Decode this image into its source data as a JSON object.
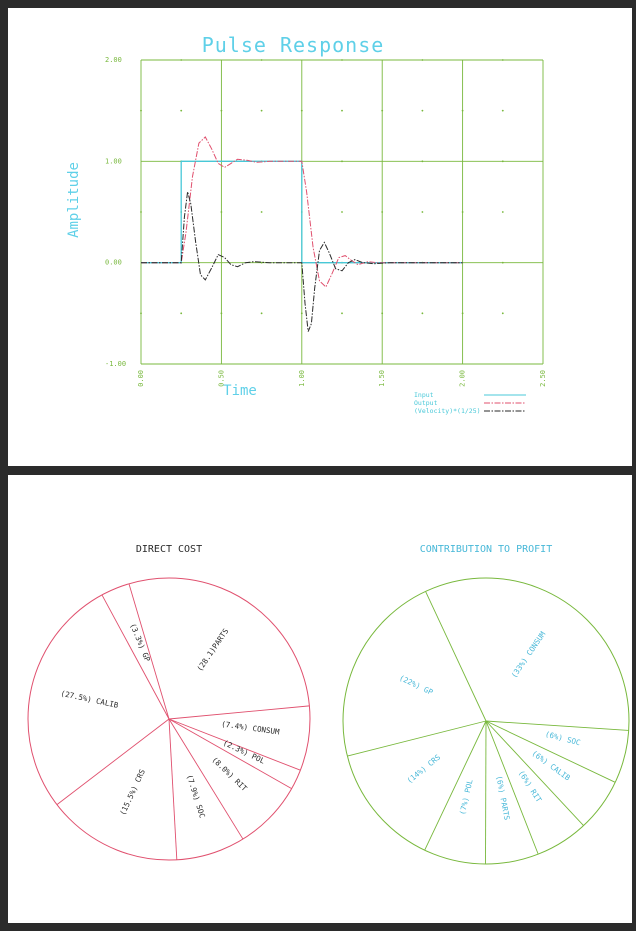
{
  "colors": {
    "grid": "#78b83c",
    "title": "#5fd0e8",
    "input": "#48c8d8",
    "output": "#e0506e",
    "velocity": "#2a2a2a",
    "pie_left": "#e0506e",
    "pie_right": "#78b83c",
    "pie_right_labels": "#48b8d8",
    "paper": "#ffffff",
    "border": "#2b2b2b"
  },
  "chart_data": [
    {
      "type": "line",
      "title": "Pulse Response",
      "xlabel": "Time",
      "ylabel": "Amplitude",
      "xlim": [
        0,
        2.5
      ],
      "ylim": [
        -1,
        2
      ],
      "x_ticks": [
        0,
        0.5,
        1,
        1.5,
        2,
        2.5
      ],
      "x_tick_labels": [
        "0.00",
        "0.50",
        "1.00",
        "1.50",
        "2.00",
        "2.50"
      ],
      "y_ticks": [
        2,
        1,
        0,
        -1
      ],
      "y_tick_labels": [
        "2.00",
        "1.00",
        "0.00",
        "-1.00"
      ],
      "grid": true,
      "legend": "bottom-right",
      "series": [
        {
          "name": "Input",
          "style": "solid",
          "x": [
            0,
            0.25,
            0.25,
            1.0,
            1.0,
            2.0
          ],
          "y": [
            0,
            0,
            1,
            1,
            0,
            0
          ]
        },
        {
          "name": "Output",
          "style": "dashdot",
          "x": [
            0,
            0.25,
            0.28,
            0.32,
            0.36,
            0.4,
            0.44,
            0.48,
            0.52,
            0.56,
            0.6,
            0.66,
            0.72,
            0.8,
            0.9,
            1.0,
            1.03,
            1.07,
            1.11,
            1.15,
            1.19,
            1.23,
            1.27,
            1.31,
            1.35,
            1.41,
            1.47,
            1.55,
            1.65,
            2.0
          ],
          "y": [
            0,
            0,
            0.3,
            0.85,
            1.18,
            1.24,
            1.12,
            0.98,
            0.94,
            0.98,
            1.02,
            1.01,
            0.99,
            1.0,
            1.0,
            1.0,
            0.7,
            0.15,
            -0.18,
            -0.24,
            -0.1,
            0.05,
            0.07,
            0.02,
            -0.02,
            0.01,
            0.0,
            0.0,
            0.0,
            0.0
          ]
        },
        {
          "name": "(Velocity)*(1/25)",
          "style": "dashdot",
          "x": [
            0,
            0.25,
            0.27,
            0.29,
            0.31,
            0.34,
            0.37,
            0.4,
            0.44,
            0.48,
            0.52,
            0.56,
            0.6,
            0.65,
            0.7,
            0.8,
            0.9,
            1.0,
            1.02,
            1.04,
            1.06,
            1.08,
            1.11,
            1.14,
            1.17,
            1.21,
            1.25,
            1.29,
            1.33,
            1.38,
            1.45,
            1.55,
            2.0
          ],
          "y": [
            0,
            0,
            0.45,
            0.7,
            0.58,
            0.2,
            -0.12,
            -0.17,
            -0.05,
            0.08,
            0.05,
            -0.02,
            -0.04,
            0.0,
            0.01,
            0.0,
            0.0,
            0.0,
            -0.4,
            -0.68,
            -0.6,
            -0.25,
            0.12,
            0.2,
            0.1,
            -0.06,
            -0.08,
            0.0,
            0.03,
            0.0,
            -0.01,
            0.0,
            0.0
          ]
        }
      ]
    },
    {
      "type": "pie",
      "title": "DIRECT COST",
      "labels": [
        "(28.1)PARTS",
        "(7.4%) CONSUM",
        "(2.3%) POL",
        "(8.0%) RIT",
        "(7.9%) SOC",
        "(15.5%) CRS",
        "(27.5%) CALIB",
        "(3.3%) GP"
      ],
      "values": [
        28.1,
        7.4,
        2.3,
        8.0,
        7.9,
        15.5,
        27.5,
        3.3
      ]
    },
    {
      "type": "pie",
      "title": "CONTRIBUTION TO PROFIT",
      "labels": [
        "(33%) CONSUM",
        "(6%) SOC",
        "(6%) CALIB",
        "(6%) RIT",
        "(6%) PARTS",
        "(7%) POL",
        "(14%) CRS",
        "(22%) GP"
      ],
      "values": [
        33,
        6,
        6,
        6,
        6,
        7,
        14,
        22
      ]
    }
  ]
}
